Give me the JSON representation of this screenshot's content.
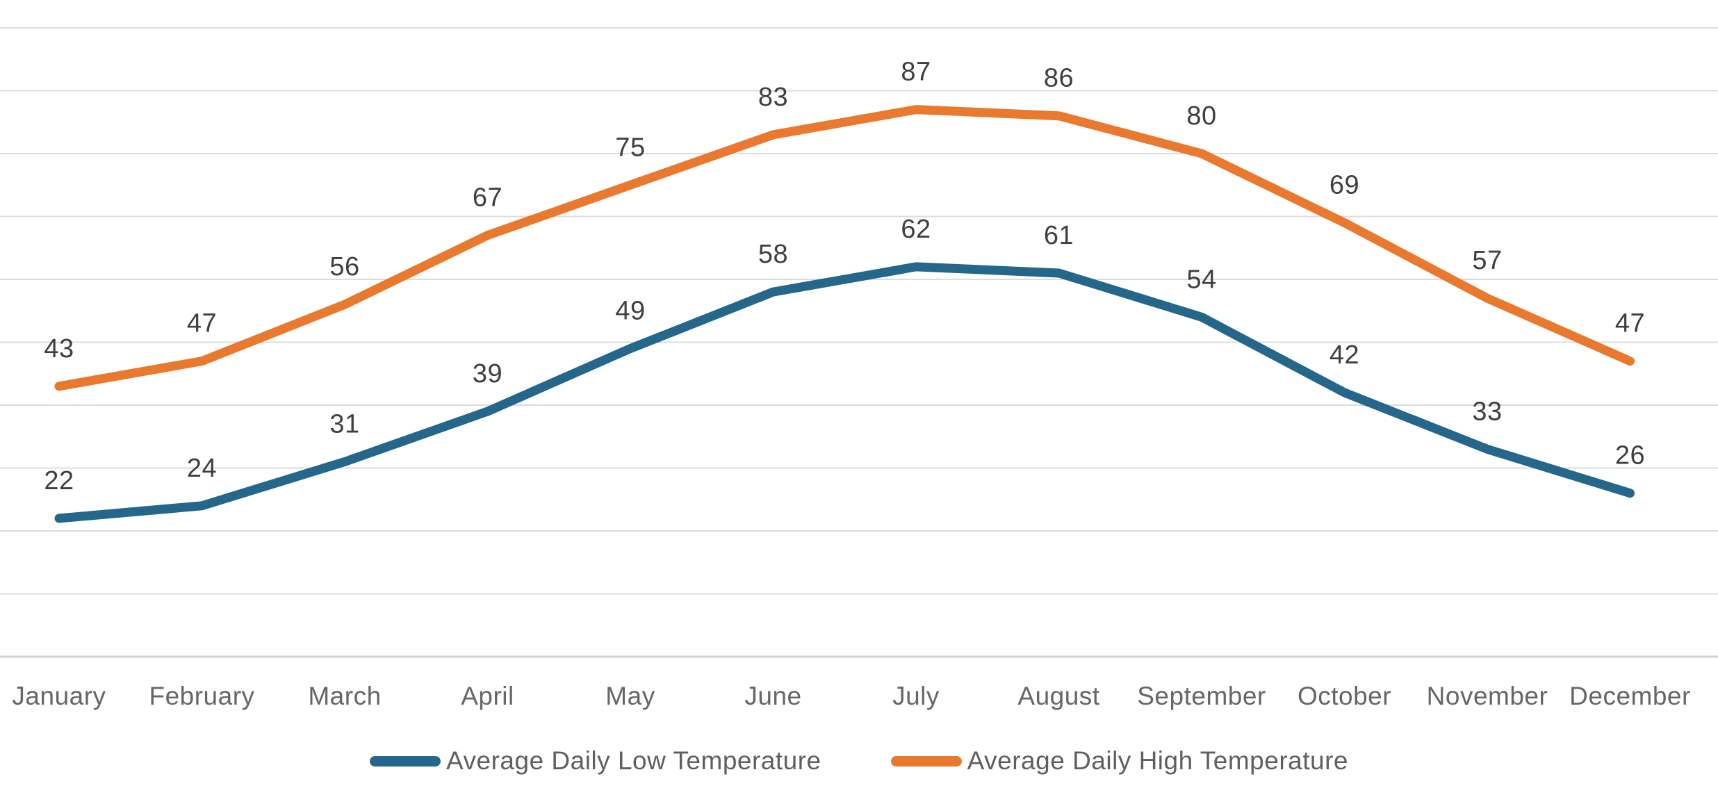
{
  "chart_data": {
    "type": "line",
    "categories": [
      "January",
      "February",
      "March",
      "April",
      "May",
      "June",
      "July",
      "August",
      "September",
      "October",
      "November",
      "December"
    ],
    "series": [
      {
        "name": "Average Daily Low Temperature",
        "color": "#24678a",
        "values": [
          22,
          24,
          31,
          39,
          49,
          58,
          62,
          61,
          54,
          42,
          33,
          26
        ]
      },
      {
        "name": "Average Daily High Temperature",
        "color": "#e8792e",
        "values": [
          43,
          47,
          56,
          67,
          75,
          83,
          87,
          86,
          80,
          69,
          57,
          47
        ]
      }
    ],
    "title": "",
    "xlabel": "",
    "ylabel": "",
    "ylim": [
      0,
      100
    ],
    "ytick_step": 10,
    "y_axis_labels_visible": false,
    "grid": "horizontal",
    "data_labels": true,
    "legend_position": "bottom",
    "colors": {
      "grid": "#dcdcdc",
      "axis": "#d0d0d0",
      "data_label_text": "#3f3f3f",
      "tick_label_text": "#666666",
      "legend_text": "#5f5f5f",
      "background": "#ffffff"
    }
  }
}
